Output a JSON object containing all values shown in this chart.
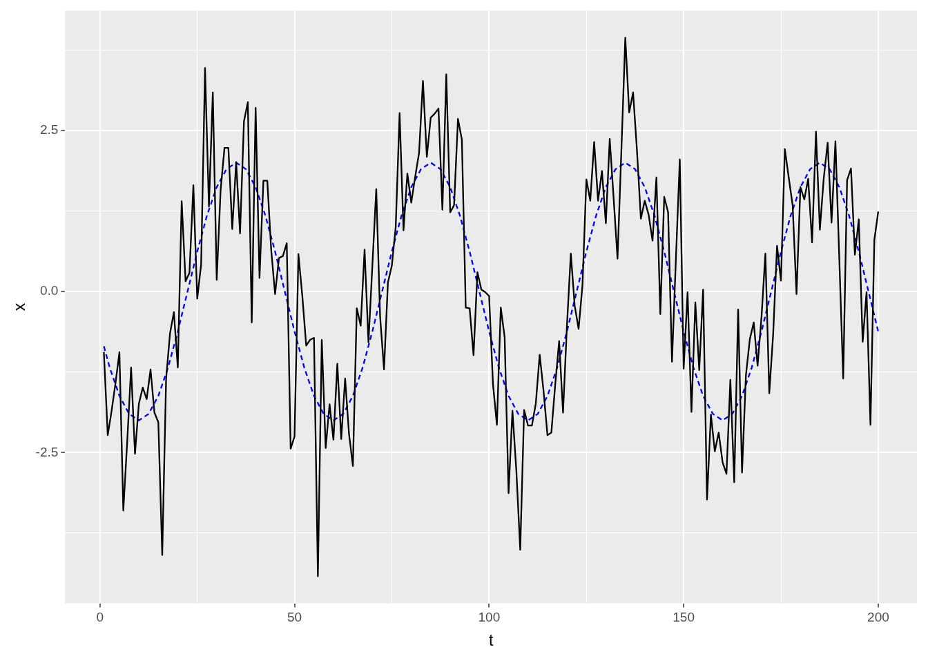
{
  "chart_data": {
    "type": "line",
    "xlabel": "t",
    "ylabel": "x",
    "xlim": [
      -8.95,
      209.95
    ],
    "ylim": [
      -4.84,
      4.36
    ],
    "xticks": [
      0,
      {
        "value": 25,
        "label": null
      },
      50,
      {
        "value": 75,
        "label": null
      },
      100,
      {
        "value": 125,
        "label": null
      },
      150,
      {
        "value": 175,
        "label": null
      },
      200
    ],
    "yticks": [
      {
        "value": -3.75,
        "label": null
      },
      -2.5,
      {
        "value": -1.25,
        "label": null
      },
      {
        "value": 0,
        "label": "0.0"
      },
      {
        "value": 1.25,
        "label": null
      },
      2.5,
      {
        "value": 3.75,
        "label": null
      }
    ],
    "grid": true,
    "legend": false,
    "marker": "none",
    "x": [
      1,
      2,
      3,
      4,
      5,
      6,
      7,
      8,
      9,
      10,
      11,
      12,
      13,
      14,
      15,
      16,
      17,
      18,
      19,
      20,
      21,
      22,
      23,
      24,
      25,
      26,
      27,
      28,
      29,
      30,
      31,
      32,
      33,
      34,
      35,
      36,
      37,
      38,
      39,
      40,
      41,
      42,
      43,
      44,
      45,
      46,
      47,
      48,
      49,
      50,
      51,
      52,
      53,
      54,
      55,
      56,
      57,
      58,
      59,
      60,
      61,
      62,
      63,
      64,
      65,
      66,
      67,
      68,
      69,
      70,
      71,
      72,
      73,
      74,
      75,
      76,
      77,
      78,
      79,
      80,
      81,
      82,
      83,
      84,
      85,
      86,
      87,
      88,
      89,
      90,
      91,
      92,
      93,
      94,
      95,
      96,
      97,
      98,
      99,
      100,
      101,
      102,
      103,
      104,
      105,
      106,
      107,
      108,
      109,
      110,
      111,
      112,
      113,
      114,
      115,
      116,
      117,
      118,
      119,
      120,
      121,
      122,
      123,
      124,
      125,
      126,
      127,
      128,
      129,
      130,
      131,
      132,
      133,
      134,
      135,
      136,
      137,
      138,
      139,
      140,
      141,
      142,
      143,
      144,
      145,
      146,
      147,
      148,
      149,
      150,
      151,
      152,
      153,
      154,
      155,
      156,
      157,
      158,
      159,
      160,
      161,
      162,
      163,
      164,
      165,
      166,
      167,
      168,
      169,
      170,
      171,
      172,
      173,
      174,
      175,
      176,
      177,
      178,
      179,
      180,
      181,
      182,
      183,
      184,
      185,
      186,
      187,
      188,
      189,
      190,
      191,
      192,
      193,
      194,
      195,
      196,
      197,
      198,
      199,
      200
    ],
    "series": [
      {
        "color": "#000000",
        "line_style": "solid",
        "values": [
          -0.94,
          -2.23,
          -1.85,
          -1.42,
          -0.94,
          -3.4,
          -2.33,
          -1.18,
          -2.52,
          -1.74,
          -1.49,
          -1.67,
          -1.21,
          -1.88,
          -2.03,
          -4.09,
          -1.35,
          -0.65,
          -0.32,
          -1.18,
          1.4,
          0.16,
          0.29,
          1.65,
          -0.11,
          0.42,
          3.47,
          1.32,
          3.09,
          0.18,
          1.57,
          2.23,
          2.23,
          0.97,
          2.01,
          0.9,
          2.64,
          2.94,
          -0.48,
          2.85,
          0.21,
          1.72,
          1.72,
          0.65,
          -0.04,
          0.52,
          0.55,
          0.75,
          -2.44,
          -2.25,
          0.58,
          -0.07,
          -0.84,
          -0.75,
          -0.72,
          -4.42,
          -0.75,
          -2.43,
          -1.75,
          -2.3,
          -1.12,
          -2.29,
          -1.35,
          -2.21,
          -2.71,
          -0.26,
          -0.53,
          0.65,
          -0.79,
          0.4,
          1.59,
          -0.4,
          -1.21,
          0.14,
          0.4,
          1.0,
          2.77,
          0.95,
          1.83,
          1.38,
          1.78,
          2.15,
          3.27,
          2.09,
          2.7,
          2.76,
          2.84,
          1.27,
          3.37,
          1.23,
          1.34,
          2.68,
          2.36,
          -0.25,
          -0.26,
          -0.99,
          0.3,
          0.03,
          -0.01,
          -0.07,
          -1.44,
          -2.07,
          -0.25,
          -0.71,
          -3.13,
          -1.85,
          -2.78,
          -4.01,
          -1.84,
          -2.08,
          -2.08,
          -1.74,
          -0.98,
          -1.55,
          -2.23,
          -2.19,
          -1.44,
          -0.77,
          -1.88,
          -0.54,
          0.59,
          -0.22,
          -0.58,
          0.1,
          1.74,
          1.41,
          2.32,
          1.41,
          1.87,
          1.06,
          2.37,
          1.45,
          0.51,
          2.2,
          3.94,
          2.78,
          3.09,
          2.19,
          1.13,
          1.41,
          1.19,
          0.79,
          1.77,
          -0.35,
          1.47,
          1.23,
          -1.09,
          0.5,
          2.05,
          -1.2,
          -0.01,
          -1.87,
          -0.17,
          -1.22,
          0.03,
          -3.23,
          -1.91,
          -2.48,
          -2.19,
          -2.65,
          -2.83,
          -1.37,
          -2.96,
          -0.28,
          -2.81,
          -1.3,
          -0.74,
          -0.48,
          -1.15,
          -0.4,
          0.59,
          -1.58,
          -0.66,
          0.71,
          0.17,
          2.21,
          1.77,
          1.34,
          -0.04,
          1.62,
          1.43,
          1.75,
          0.76,
          2.48,
          0.96,
          1.76,
          2.31,
          1.07,
          2.33,
          0.5,
          -1.35,
          1.73,
          1.91,
          0.57,
          1.12,
          -0.78,
          -0.01,
          -2.07,
          0.8,
          1.24
        ]
      },
      {
        "color": "#0000ff",
        "line_style": "dashed",
        "x": [
          1,
          2.5,
          5,
          7.5,
          10,
          12.5,
          15,
          17.5,
          20,
          22.5,
          25,
          27.5,
          30,
          32.5,
          35,
          37.5,
          40,
          42.5,
          45,
          47.5,
          50,
          52.5,
          55,
          57.5,
          60,
          62.5,
          65,
          67.5,
          70,
          72.5,
          75,
          77.5,
          80,
          82.5,
          85,
          87.5,
          90,
          92.5,
          95,
          97.5,
          100,
          102.5,
          105,
          107.5,
          110,
          112.5,
          115,
          117.5,
          120,
          122.5,
          125,
          127.5,
          130,
          132.5,
          135,
          137.5,
          140,
          142.5,
          145,
          147.5,
          150,
          152.5,
          155,
          157.5,
          160,
          162.5,
          165,
          167.5,
          170,
          172.5,
          175,
          177.5,
          180,
          182.5,
          185,
          187.5,
          190,
          192.5,
          195,
          197.5,
          200
        ],
        "values": [
          -0.85,
          -1.18,
          -1.62,
          -1.9,
          -2,
          -1.9,
          -1.62,
          -1.18,
          -0.62,
          0,
          0.62,
          1.18,
          1.62,
          1.9,
          2,
          1.9,
          1.62,
          1.18,
          0.62,
          0,
          -0.62,
          -1.18,
          -1.62,
          -1.9,
          -2,
          -1.9,
          -1.62,
          -1.18,
          -0.62,
          0,
          0.62,
          1.18,
          1.62,
          1.9,
          2,
          1.9,
          1.62,
          1.18,
          0.62,
          0,
          -0.62,
          -1.18,
          -1.62,
          -1.9,
          -2,
          -1.9,
          -1.62,
          -1.18,
          -0.62,
          0,
          0.62,
          1.18,
          1.62,
          1.9,
          2,
          1.9,
          1.62,
          1.18,
          0.62,
          0,
          -0.62,
          -1.18,
          -1.62,
          -1.9,
          -2,
          -1.9,
          -1.62,
          -1.18,
          -0.62,
          0,
          0.62,
          1.18,
          1.62,
          1.9,
          2,
          1.9,
          1.62,
          1.18,
          0.62,
          0,
          -0.62
        ]
      }
    ]
  }
}
